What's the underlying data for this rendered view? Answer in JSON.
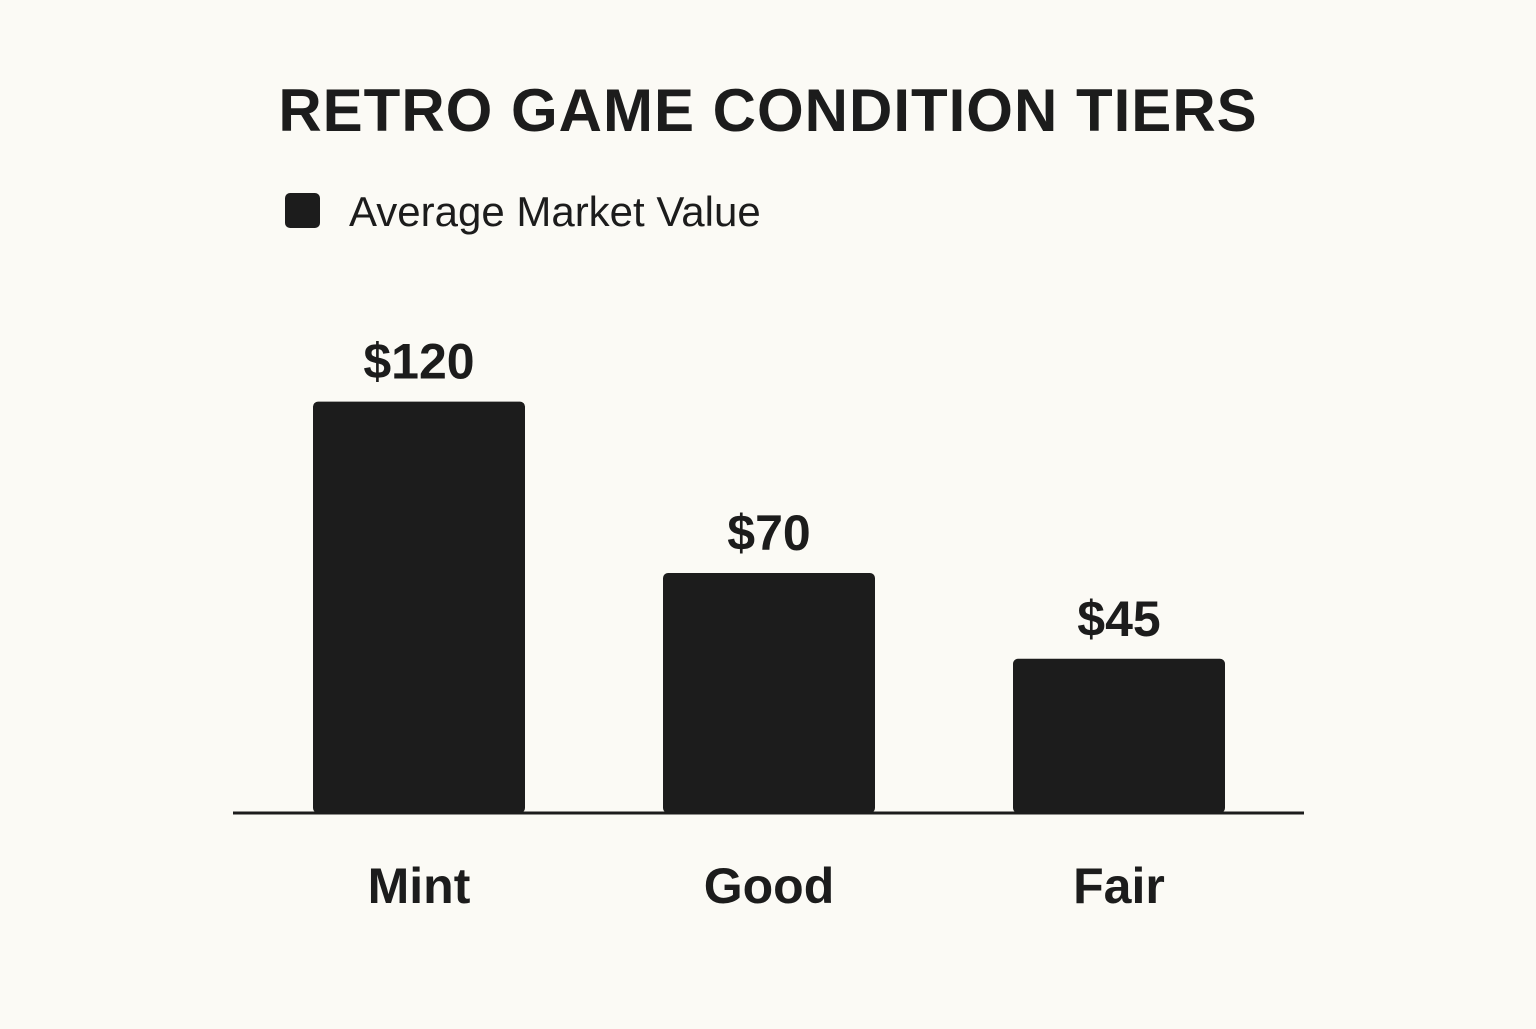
{
  "colors": {
    "background": "#fbfaf5",
    "bar": "#1c1c1c",
    "text": "#1c1c1c",
    "axis": "#1c1c1c"
  },
  "chart_data": {
    "type": "bar",
    "title": "RETRO GAME CONDITION TIERS",
    "xlabel": "",
    "ylabel": "",
    "categories": [
      "Mint",
      "Good",
      "Fair"
    ],
    "series": [
      {
        "name": "Average Market Value",
        "values": [
          120,
          70,
          45
        ],
        "data_labels": [
          "$120",
          "$70",
          "$45"
        ]
      }
    ],
    "ylim": [
      0,
      180
    ],
    "grid": false,
    "legend_position": "top-left"
  }
}
